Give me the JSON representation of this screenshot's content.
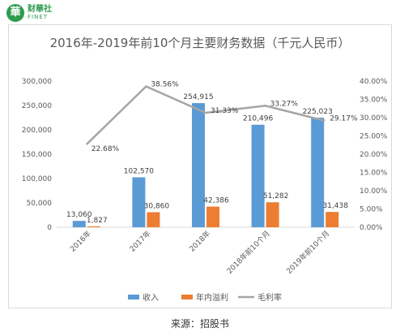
{
  "logo": {
    "glyph": "華",
    "cn": "财華社",
    "en": "FINET"
  },
  "source": "来源：招股书",
  "colors": {
    "revenue": "#5b9bd5",
    "profit": "#ed7d31",
    "margin": "#a5a5a5"
  },
  "chart_data": {
    "type": "bar",
    "title": "2016年-2019年前10个月主要财务数据（千元人民币）",
    "categories": [
      "2016年",
      "2017年",
      "2018年",
      "2018年前10个月",
      "2019年前10个月"
    ],
    "series": [
      {
        "name": "收入",
        "type": "bar",
        "axis": "left",
        "values": [
          13060,
          102570,
          254915,
          210496,
          225023
        ],
        "labels": [
          "13,060",
          "102,570",
          "254,915",
          "210,496",
          "225,023"
        ]
      },
      {
        "name": "年内溢利",
        "type": "bar",
        "axis": "left",
        "values": [
          1827,
          30860,
          42386,
          51282,
          31438
        ],
        "labels": [
          "1,827",
          "30,860",
          "42,386",
          "51,282",
          "31,438"
        ]
      },
      {
        "name": "毛利率",
        "type": "line",
        "axis": "right",
        "values": [
          22.68,
          38.56,
          31.33,
          33.27,
          29.17
        ],
        "labels": [
          "22.68%",
          "38.56%",
          "31.33%",
          "33.27%",
          "29.17%"
        ]
      }
    ],
    "y_left": {
      "min": 0,
      "max": 300000,
      "ticks": [
        "0",
        "50,000",
        "100,000",
        "150,000",
        "200,000",
        "250,000",
        "300,000"
      ]
    },
    "y_right": {
      "min": 0,
      "max": 40,
      "ticks": [
        "0.00%",
        "5.00%",
        "10.00%",
        "15.00%",
        "20.00%",
        "25.00%",
        "30.00%",
        "35.00%",
        "40.00%"
      ]
    },
    "legend": "bottom",
    "grid": false
  }
}
